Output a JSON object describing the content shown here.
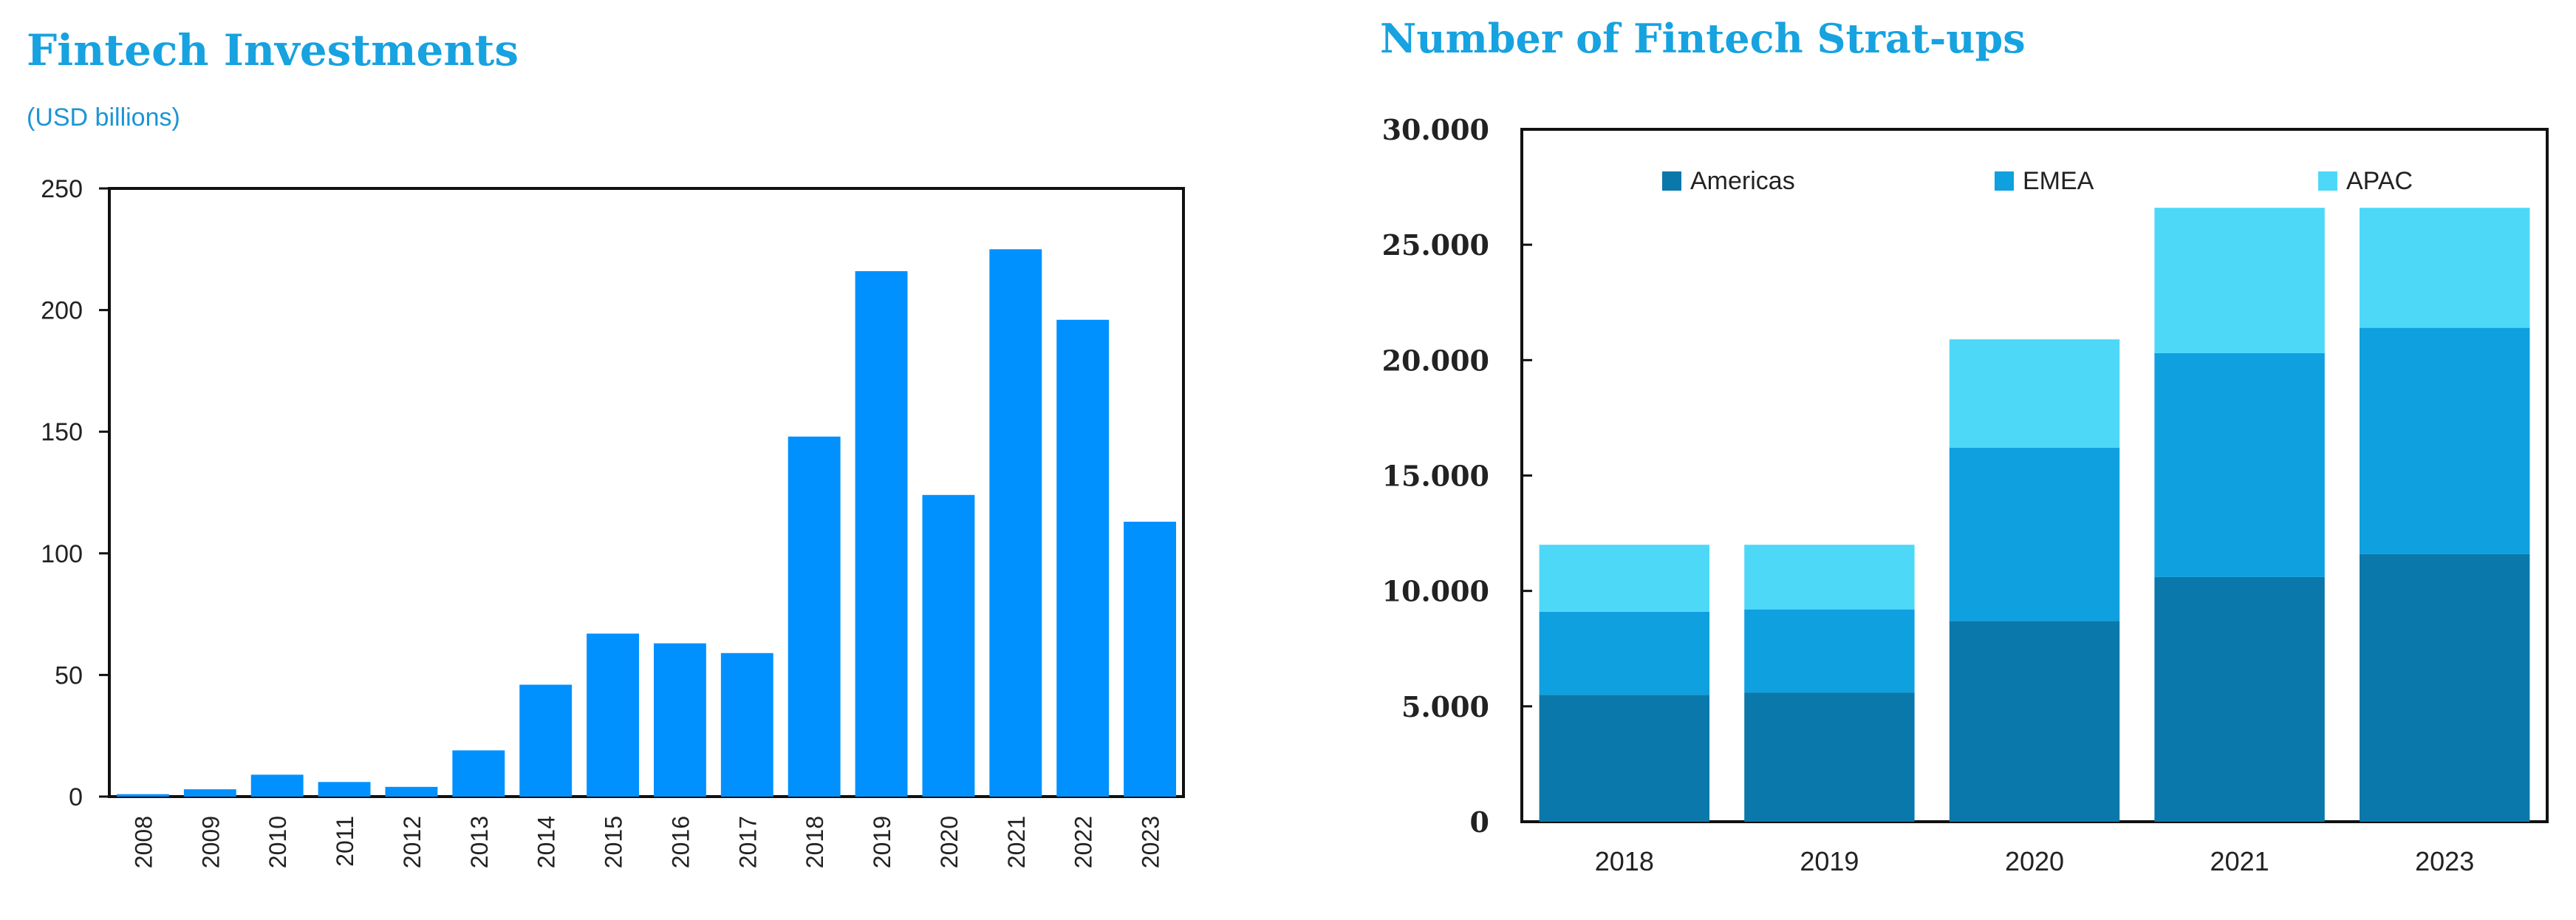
{
  "chart_data": [
    {
      "type": "bar",
      "title": "Fintech Investments",
      "subtitle": "(USD billions)",
      "categories": [
        "2008",
        "2009",
        "2010",
        "2011",
        "2012",
        "2013",
        "2014",
        "2015",
        "2016",
        "2017",
        "2018",
        "2019",
        "2020",
        "2021",
        "2022",
        "2023"
      ],
      "values": [
        1,
        3,
        9,
        6,
        4,
        19,
        46,
        67,
        63,
        59,
        148,
        216,
        124,
        225,
        196,
        113
      ],
      "ylim": [
        0,
        250
      ],
      "yticks": [
        "0",
        "50",
        "100",
        "150",
        "200",
        "250"
      ],
      "grid": false,
      "color": "#0091ff"
    },
    {
      "type": "bar",
      "stacked": true,
      "title": "Number of Fintech Strat-ups",
      "categories": [
        "2018",
        "2019",
        "2020",
        "2021",
        "2023"
      ],
      "series": [
        {
          "name": "Americas",
          "color": "#0a78aa",
          "values": [
            5500,
            5600,
            8700,
            10600,
            11600
          ]
        },
        {
          "name": "EMEA",
          "color": "#0ea0df",
          "values": [
            3600,
            3600,
            7500,
            9700,
            9800
          ]
        },
        {
          "name": "APAC",
          "color": "#4dd8f8",
          "values": [
            2900,
            2800,
            4700,
            6300,
            5200
          ]
        }
      ],
      "ylim": [
        0,
        30000
      ],
      "yticks": [
        "0",
        "5.000",
        "10.000",
        "15.000",
        "20.000",
        "25.000",
        "30.000"
      ],
      "legend_position": "top",
      "grid": false
    }
  ]
}
